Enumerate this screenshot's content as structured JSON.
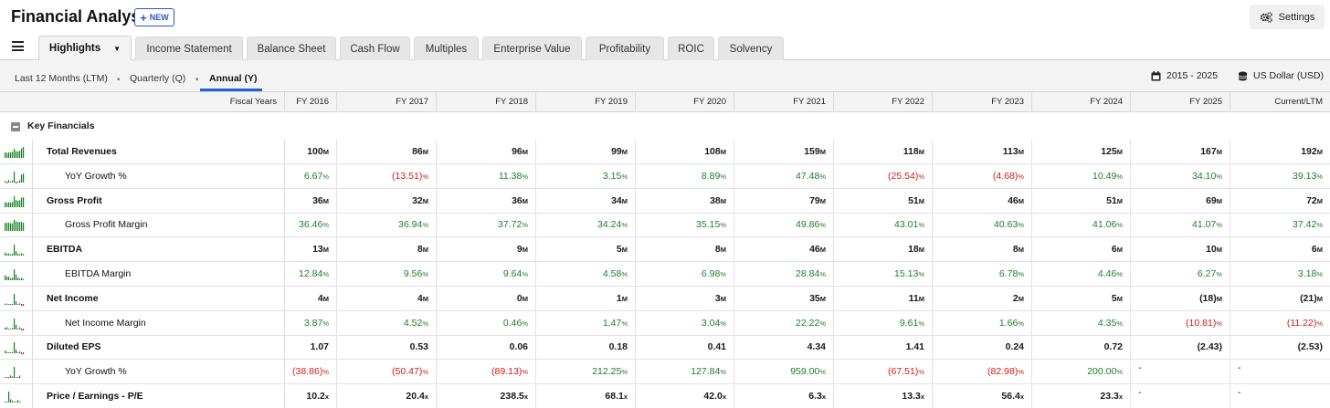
{
  "header": {
    "title": "Financial Analysis",
    "new_label": "NEW",
    "settings_label": "Settings"
  },
  "tabs": [
    {
      "label": "Highlights",
      "active": true
    },
    {
      "label": "Income Statement"
    },
    {
      "label": "Balance Sheet"
    },
    {
      "label": "Cash Flow"
    },
    {
      "label": "Multiples"
    },
    {
      "label": "Enterprise Value"
    },
    {
      "label": "Profitability"
    },
    {
      "label": "ROIC"
    },
    {
      "label": "Solvency"
    }
  ],
  "periods": {
    "ltm": "Last 12 Months (LTM)",
    "quarterly": "Quarterly (Q)",
    "annual": "Annual (Y)",
    "range": "2015 - 2025",
    "currency": "US Dollar (USD)"
  },
  "table": {
    "header_label": "Fiscal Years",
    "columns": [
      "FY 2016",
      "FY 2017",
      "FY 2018",
      "FY 2019",
      "FY 2020",
      "FY 2021",
      "FY 2022",
      "FY 2023",
      "FY 2024",
      "FY 2025",
      "Current/LTM"
    ],
    "section": "Key Financials",
    "rows": [
      {
        "label": "Total Revenues",
        "bold": true,
        "unit": "M",
        "type": "num",
        "values": [
          "100",
          "86",
          "96",
          "99",
          "108",
          "159",
          "118",
          "113",
          "125",
          "167",
          "192"
        ]
      },
      {
        "label": "YoY Growth %",
        "bold": false,
        "unit": "%",
        "type": "pct",
        "values": [
          "6.67",
          "(13.51)",
          "11.38",
          "3.15",
          "8.89",
          "47.48",
          "(25.54)",
          "(4.68)",
          "10.49",
          "34.10",
          "39.13"
        ]
      },
      {
        "label": "Gross Profit",
        "bold": true,
        "unit": "M",
        "type": "num",
        "values": [
          "36",
          "32",
          "36",
          "34",
          "38",
          "79",
          "51",
          "46",
          "51",
          "69",
          "72"
        ]
      },
      {
        "label": "Gross Profit Margin",
        "bold": false,
        "unit": "%",
        "type": "pct",
        "values": [
          "36.46",
          "36.94",
          "37.72",
          "34.24",
          "35.15",
          "49.86",
          "43.01",
          "40.63",
          "41.06",
          "41.07",
          "37.42"
        ]
      },
      {
        "label": "EBITDA",
        "bold": true,
        "unit": "M",
        "type": "num",
        "values": [
          "13",
          "8",
          "9",
          "5",
          "8",
          "46",
          "18",
          "8",
          "6",
          "10",
          "6"
        ]
      },
      {
        "label": "EBITDA Margin",
        "bold": false,
        "unit": "%",
        "type": "pct",
        "values": [
          "12.84",
          "9.56",
          "9.64",
          "4.58",
          "6.98",
          "28.84",
          "15.13",
          "6.78",
          "4.46",
          "6.27",
          "3.18"
        ]
      },
      {
        "label": "Net Income",
        "bold": true,
        "unit": "M",
        "type": "num",
        "values": [
          "4",
          "4",
          "0",
          "1",
          "3",
          "35",
          "11",
          "2",
          "5",
          "(18)",
          "(21)"
        ]
      },
      {
        "label": "Net Income Margin",
        "bold": false,
        "unit": "%",
        "type": "pct",
        "values": [
          "3.87",
          "4.52",
          "0.46",
          "1.47",
          "3.04",
          "22.22",
          "9.61",
          "1.66",
          "4.35",
          "(10.81)",
          "(11.22)"
        ]
      },
      {
        "label": "Diluted EPS",
        "bold": true,
        "unit": "",
        "type": "num",
        "values": [
          "1.07",
          "0.53",
          "0.06",
          "0.18",
          "0.41",
          "4.34",
          "1.41",
          "0.24",
          "0.72",
          "(2.43)",
          "(2.53)"
        ]
      },
      {
        "label": "YoY Growth %",
        "bold": false,
        "unit": "%",
        "type": "pct",
        "values": [
          "(38.86)",
          "(50.47)",
          "(89.13)",
          "212.25",
          "127.84",
          "959.00",
          "(67.51)",
          "(82.98)",
          "200.00",
          "-",
          "-"
        ]
      },
      {
        "label": "Price / Earnings - P/E",
        "bold": true,
        "unit": "x",
        "type": "num",
        "values": [
          "10.2",
          "20.4",
          "238.5",
          "68.1",
          "42.0",
          "6.3",
          "13.3",
          "56.4",
          "23.3",
          "-",
          "-"
        ]
      }
    ]
  },
  "colors": {
    "positive": "#1a7f24",
    "negative": "#d11a1a",
    "accent": "#1d63d6"
  }
}
